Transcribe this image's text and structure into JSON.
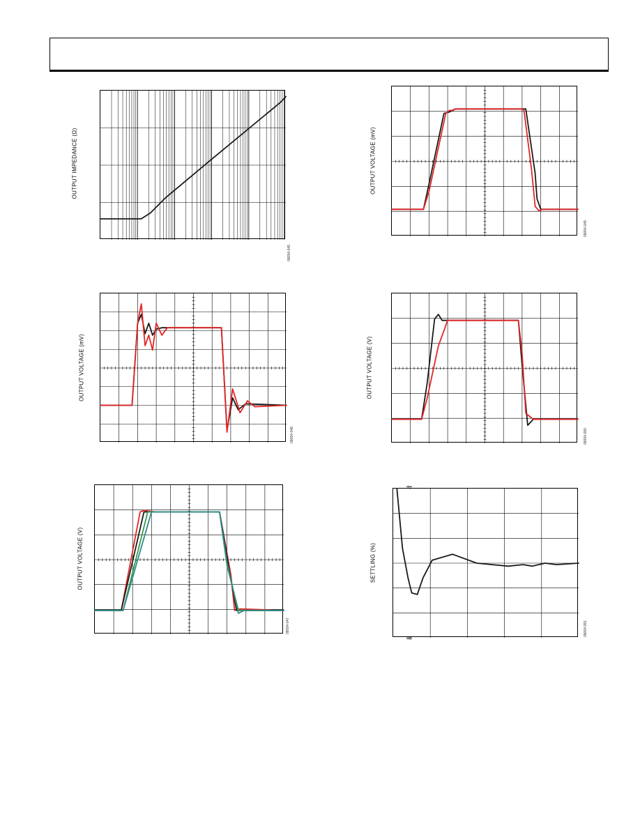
{
  "colors": {
    "red": "#e32626",
    "black": "#1a1a1a",
    "teal": "#2e8b8b",
    "green": "#3a9a4a",
    "blue": "#3a6fa8"
  },
  "charts": [
    {
      "id": "c1",
      "ylabel": "OUTPUT IMPEDANCE (Ω)",
      "fig_id": "09054-045"
    },
    {
      "id": "c2",
      "ylabel": "OUTPUT VOLTAGE (mV)",
      "fig_id": "09054-049"
    },
    {
      "id": "c3",
      "ylabel": "OUTPUT VOLTAGE (mV)",
      "fig_id": "09054-048"
    },
    {
      "id": "c4",
      "ylabel": "OUTPUT VOLTAGE (V)",
      "fig_id": "09054-050"
    },
    {
      "id": "c5",
      "ylabel": "OUTPUT VOLTAGE (V)",
      "fig_id": "09054-047"
    },
    {
      "id": "c6",
      "ylabel": "SETTLING (%)",
      "fig_id": "09054-051",
      "break_marks": [
        "≈",
        "≈"
      ]
    }
  ],
  "chart_data": [
    {
      "type": "line",
      "scale": "log-x",
      "grid": true,
      "series": [
        {
          "color": "black",
          "values": [
            [
              0.0,
              0.14
            ],
            [
              0.22,
              0.14
            ],
            [
              0.27,
              0.18
            ],
            [
              0.35,
              0.28
            ],
            [
              0.6,
              0.54
            ],
            [
              0.97,
              0.92
            ],
            [
              1.0,
              0.96
            ]
          ]
        }
      ]
    },
    {
      "type": "line",
      "grid": true,
      "series": [
        {
          "color": "black",
          "values": [
            [
              0.0,
              0.18
            ],
            [
              0.17,
              0.18
            ],
            [
              0.2,
              0.35
            ],
            [
              0.28,
              0.82
            ],
            [
              0.31,
              0.83
            ],
            [
              0.34,
              0.85
            ],
            [
              0.72,
              0.85
            ],
            [
              0.77,
              0.42
            ],
            [
              0.78,
              0.25
            ],
            [
              0.8,
              0.18
            ],
            [
              1.0,
              0.18
            ]
          ]
        },
        {
          "color": "red",
          "values": [
            [
              0.0,
              0.18
            ],
            [
              0.17,
              0.18
            ],
            [
              0.2,
              0.3
            ],
            [
              0.29,
              0.82
            ],
            [
              0.31,
              0.84
            ],
            [
              0.33,
              0.84
            ],
            [
              0.34,
              0.85
            ],
            [
              0.7,
              0.85
            ],
            [
              0.71,
              0.84
            ],
            [
              0.75,
              0.45
            ],
            [
              0.77,
              0.2
            ],
            [
              0.79,
              0.17
            ],
            [
              0.81,
              0.18
            ],
            [
              1.0,
              0.18
            ]
          ]
        }
      ]
    },
    {
      "type": "line",
      "grid": true,
      "series": [
        {
          "color": "black",
          "values": [
            [
              0.0,
              0.25
            ],
            [
              0.17,
              0.25
            ],
            [
              0.2,
              0.8
            ],
            [
              0.22,
              0.86
            ],
            [
              0.24,
              0.73
            ],
            [
              0.26,
              0.8
            ],
            [
              0.28,
              0.72
            ],
            [
              0.3,
              0.76
            ],
            [
              0.33,
              0.77
            ],
            [
              0.65,
              0.77
            ],
            [
              0.68,
              0.08
            ],
            [
              0.71,
              0.3
            ],
            [
              0.74,
              0.22
            ],
            [
              0.78,
              0.26
            ],
            [
              1.0,
              0.25
            ]
          ]
        },
        {
          "color": "red",
          "values": [
            [
              0.0,
              0.25
            ],
            [
              0.17,
              0.25
            ],
            [
              0.2,
              0.8
            ],
            [
              0.22,
              0.93
            ],
            [
              0.24,
              0.65
            ],
            [
              0.26,
              0.72
            ],
            [
              0.28,
              0.62
            ],
            [
              0.3,
              0.8
            ],
            [
              0.33,
              0.72
            ],
            [
              0.36,
              0.77
            ],
            [
              0.65,
              0.77
            ],
            [
              0.68,
              0.07
            ],
            [
              0.71,
              0.36
            ],
            [
              0.75,
              0.2
            ],
            [
              0.79,
              0.28
            ],
            [
              0.83,
              0.24
            ],
            [
              1.0,
              0.25
            ]
          ]
        }
      ]
    },
    {
      "type": "line",
      "grid": true,
      "series": [
        {
          "color": "black",
          "values": [
            [
              0.0,
              0.16
            ],
            [
              0.16,
              0.16
            ],
            [
              0.19,
              0.4
            ],
            [
              0.23,
              0.83
            ],
            [
              0.25,
              0.86
            ],
            [
              0.27,
              0.82
            ],
            [
              0.3,
              0.82
            ],
            [
              0.68,
              0.82
            ],
            [
              0.7,
              0.52
            ],
            [
              0.73,
              0.12
            ],
            [
              0.76,
              0.16
            ],
            [
              1.0,
              0.16
            ]
          ]
        },
        {
          "color": "red",
          "values": [
            [
              0.0,
              0.16
            ],
            [
              0.16,
              0.16
            ],
            [
              0.19,
              0.3
            ],
            [
              0.25,
              0.65
            ],
            [
              0.3,
              0.82
            ],
            [
              0.68,
              0.82
            ],
            [
              0.7,
              0.6
            ],
            [
              0.72,
              0.2
            ],
            [
              0.76,
              0.16
            ],
            [
              1.0,
              0.16
            ]
          ]
        }
      ]
    },
    {
      "type": "line",
      "grid": true,
      "series": [
        {
          "color": "red",
          "values": [
            [
              0.0,
              0.16
            ],
            [
              0.14,
              0.16
            ],
            [
              0.24,
              0.82
            ],
            [
              0.26,
              0.83
            ],
            [
              0.32,
              0.82
            ],
            [
              0.66,
              0.82
            ],
            [
              0.72,
              0.4
            ],
            [
              0.74,
              0.16
            ],
            [
              0.77,
              0.17
            ],
            [
              1.0,
              0.16
            ]
          ]
        },
        {
          "color": "black",
          "values": [
            [
              0.0,
              0.16
            ],
            [
              0.14,
              0.16
            ],
            [
              0.26,
              0.82
            ],
            [
              0.32,
              0.82
            ],
            [
              0.66,
              0.82
            ],
            [
              0.71,
              0.44
            ],
            [
              0.75,
              0.16
            ],
            [
              1.0,
              0.16
            ]
          ]
        },
        {
          "color": "green",
          "values": [
            [
              0.0,
              0.16
            ],
            [
              0.15,
              0.16
            ],
            [
              0.28,
              0.82
            ],
            [
              0.32,
              0.82
            ],
            [
              0.66,
              0.82
            ],
            [
              0.7,
              0.46
            ],
            [
              0.76,
              0.16
            ],
            [
              1.0,
              0.16
            ]
          ]
        },
        {
          "color": "teal",
          "values": [
            [
              0.0,
              0.16
            ],
            [
              0.15,
              0.16
            ],
            [
              0.3,
              0.82
            ],
            [
              0.66,
              0.82
            ],
            [
              0.7,
              0.48
            ],
            [
              0.76,
              0.14
            ],
            [
              0.79,
              0.16
            ],
            [
              1.0,
              0.16
            ]
          ]
        }
      ]
    },
    {
      "type": "line",
      "grid": true,
      "series": [
        {
          "color": "black",
          "values": [
            [
              0.02,
              1.0
            ],
            [
              0.05,
              0.6
            ],
            [
              0.08,
              0.4
            ],
            [
              0.1,
              0.3
            ],
            [
              0.13,
              0.29
            ],
            [
              0.16,
              0.4
            ],
            [
              0.21,
              0.52
            ],
            [
              0.32,
              0.56
            ],
            [
              0.45,
              0.5
            ],
            [
              0.62,
              0.48
            ],
            [
              0.7,
              0.49
            ],
            [
              0.75,
              0.48
            ],
            [
              0.82,
              0.5
            ],
            [
              0.88,
              0.49
            ],
            [
              1.0,
              0.5
            ]
          ]
        }
      ]
    }
  ]
}
